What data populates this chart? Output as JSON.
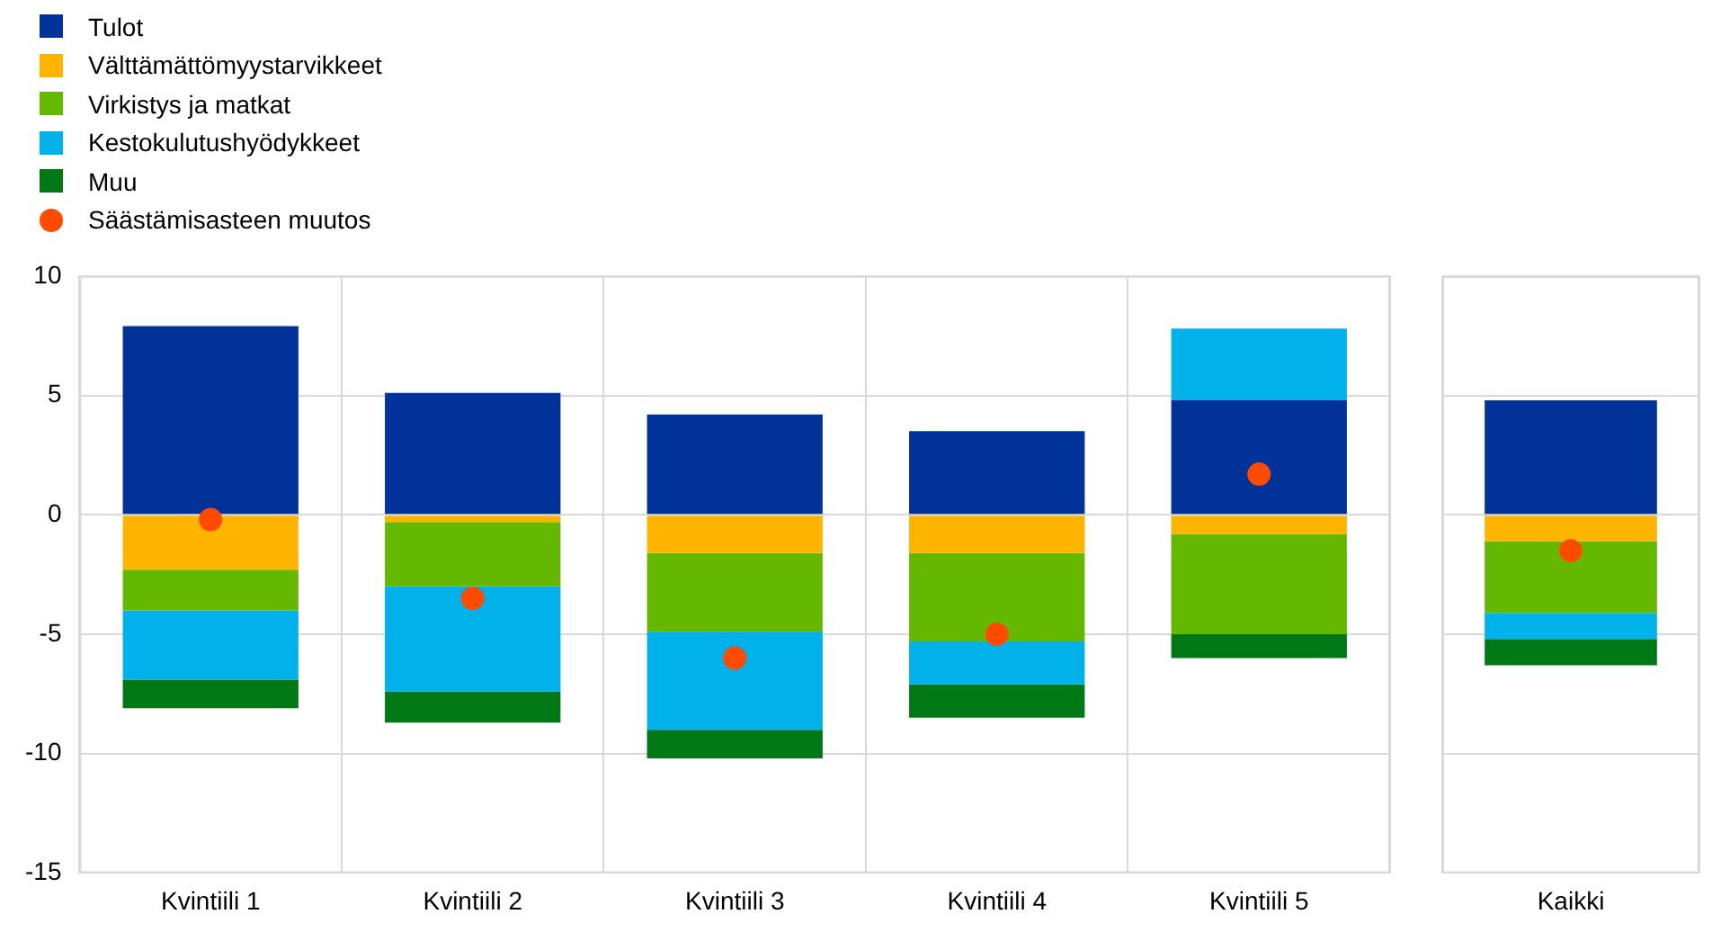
{
  "chart_data": [
    {
      "type": "bar",
      "stacked": true,
      "legend": "top left",
      "grid": true,
      "ylim": [
        -15,
        10
      ],
      "yticks": [
        -15,
        -10,
        -5,
        0,
        5,
        10
      ],
      "categories": [
        "Kvintiili 1",
        "Kvintiili 2",
        "Kvintiili 3",
        "Kvintiili 4",
        "Kvintiili 5"
      ],
      "series": [
        {
          "name": "Tulot",
          "color": "#003299",
          "values": [
            7.9,
            5.1,
            4.2,
            3.5,
            4.8
          ]
        },
        {
          "name": "Välttämättömyystarvikkeet",
          "color": "#ffb400",
          "values": [
            -2.3,
            -0.3,
            -1.6,
            -1.6,
            -0.8
          ]
        },
        {
          "name": "Virkistys ja matkat",
          "color": "#65b800",
          "values": [
            -1.7,
            -2.7,
            -3.3,
            -3.7,
            -4.2
          ]
        },
        {
          "name": "Kestokulutushyödykkeet",
          "color": "#00b1ea",
          "values": [
            -2.9,
            -4.4,
            -4.1,
            -1.8,
            3.0
          ]
        },
        {
          "name": "Muu",
          "color": "#007816",
          "values": [
            -1.2,
            -1.3,
            -1.2,
            -1.4,
            -1.0
          ]
        },
        {
          "name": "Säästämisasteen muutos",
          "color": "#ff4b00",
          "type": "scatter",
          "marker": "circle",
          "x": [
            "Kvintiili 1",
            "Kvintiili 2",
            "Kvintiili 3",
            "Kvintiili 4",
            "Kvintiili 5"
          ],
          "values": [
            -0.2,
            -3.5,
            -6.0,
            -5.0,
            1.7
          ]
        }
      ]
    },
    {
      "type": "bar",
      "stacked": true,
      "legend": false,
      "grid": true,
      "tick_labels": "x",
      "ylim": [
        -15,
        10
      ],
      "yticks": [
        -15,
        -10,
        -5,
        0,
        5,
        10
      ],
      "categories": [
        "Kaikki"
      ],
      "series": [
        {
          "color": "#003299",
          "values": [
            4.8
          ]
        },
        {
          "color": "#ffb400",
          "values": [
            -1.1
          ]
        },
        {
          "color": "#65b800",
          "values": [
            -3.0
          ]
        },
        {
          "color": "#00b1ea",
          "values": [
            -1.1
          ]
        },
        {
          "color": "#007816",
          "values": [
            -1.1
          ]
        },
        {
          "color": "#ff4b00",
          "type": "scatter",
          "marker": "circle",
          "x": [
            "Kaikki"
          ],
          "values": [
            -1.5
          ]
        }
      ]
    }
  ]
}
